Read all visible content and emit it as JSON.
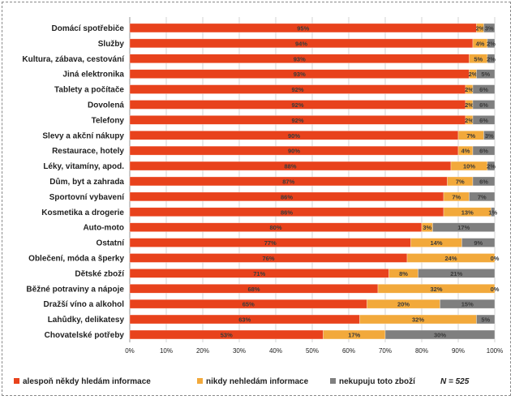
{
  "chart_data": {
    "type": "bar",
    "orientation": "horizontal",
    "stacked": true,
    "categories": [
      "Domácí spotřebiče",
      "Služby",
      "Kultura, zábava, cestování",
      "Jiná elektronika",
      "Tablety a počítače",
      "Dovolená",
      "Telefony",
      "Slevy a akční nákupy",
      "Restaurace, hotely",
      "Léky, vitamíny, apod.",
      "Dům, byt a zahrada",
      "Sportovní vybavení",
      "Kosmetika a drogerie",
      "Auto-moto",
      "Ostatní",
      "Oblečení, móda a šperky",
      "Dětské zboží",
      "Běžné potraviny a nápoje",
      "Dražší víno a alkohol",
      "Lahůdky, delikatesy",
      "Chovatelské potřeby"
    ],
    "series": [
      {
        "name": "alespoň někdy hledám informace",
        "color": "#E8421C",
        "values": [
          95,
          94,
          93,
          93,
          92,
          92,
          92,
          90,
          90,
          88,
          87,
          86,
          86,
          80,
          77,
          76,
          71,
          68,
          65,
          63,
          53
        ],
        "labels": [
          "95%",
          "94%",
          "93%",
          "93%",
          "92%",
          "92%",
          "92%",
          "90%",
          "90%",
          "88%",
          "87%",
          "86%",
          "86%",
          "80%",
          "77%",
          "76%",
          "71%",
          "68%",
          "65%",
          "63%",
          "53%"
        ]
      },
      {
        "name": "nikdy nehledám informace",
        "color": "#F2A93B",
        "values": [
          2,
          4,
          5,
          2,
          2,
          2,
          2,
          7,
          4,
          10,
          7,
          7,
          13,
          3,
          14,
          24,
          8,
          32,
          20,
          32,
          17
        ],
        "labels": [
          "2%",
          "4%",
          "5%",
          "2%",
          "2%",
          "2%",
          "2%",
          "7%",
          "4%",
          "10%",
          "7%",
          "7%",
          "13%",
          "3%",
          "14%",
          "24%",
          "8%",
          "32%",
          "20%",
          "32%",
          "17%"
        ]
      },
      {
        "name": "nekupuju toto zboží",
        "color": "#7F7F7F",
        "values": [
          3,
          2,
          2,
          5,
          6,
          6,
          6,
          3,
          6,
          2,
          6,
          7,
          1,
          17,
          9,
          0,
          21,
          0,
          15,
          5,
          30
        ],
        "labels": [
          "3%",
          "2%",
          "2%",
          "5%",
          "6%",
          "6%",
          "6%",
          "3%",
          "6%",
          "2%",
          "6%",
          "7%",
          "1%",
          "17%",
          "9%",
          "0%",
          "21%",
          "0%",
          "15%",
          "5%",
          "30%"
        ]
      }
    ],
    "xlim": [
      0,
      100
    ],
    "x_ticks": [
      "0%",
      "10%",
      "20%",
      "30%",
      "40%",
      "50%",
      "60%",
      "70%",
      "80%",
      "90%",
      "100%"
    ],
    "grid": "vertical",
    "legend_position": "bottom",
    "note": "N = 525"
  }
}
